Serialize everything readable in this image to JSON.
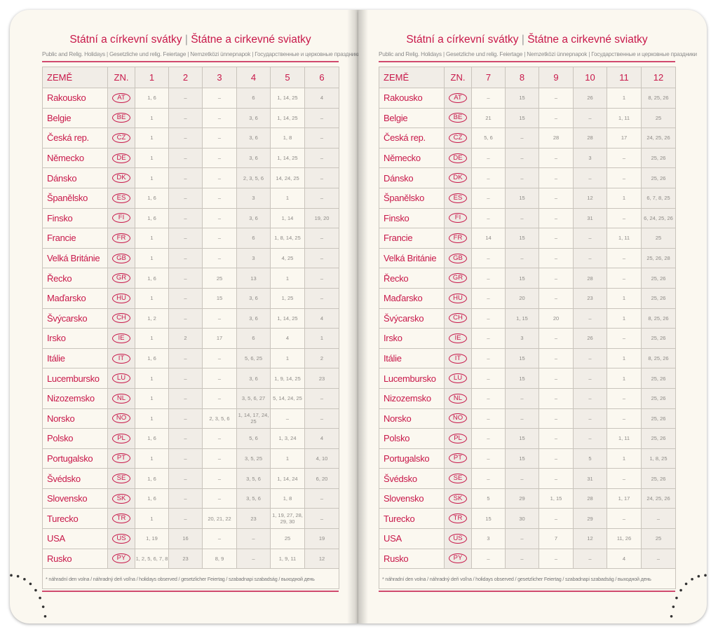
{
  "title_cz": "Státní a církevní svátky",
  "title_sep": "|",
  "title_sk": "Štátne a cirkevné sviatky",
  "subtitle": "Public and Relig. Holidays | Gesetzliche und relig. Feiertage | Nemzetközi ünnepnapok | Государственные и церковные праздники",
  "header_country": "ZEMĚ",
  "header_code": "ZN.",
  "footnote": "* náhradní den volna / náhradný deň voľna / holidays observed / gesetzlicher Feiertag / szabadnapi szabadság / выходной день",
  "accent_color": "#c8184a",
  "countries": [
    {
      "name": "Rakousko",
      "code": "AT"
    },
    {
      "name": "Belgie",
      "code": "BE"
    },
    {
      "name": "Česká rep.",
      "code": "CZ"
    },
    {
      "name": "Německo",
      "code": "DE"
    },
    {
      "name": "Dánsko",
      "code": "DK"
    },
    {
      "name": "Španělsko",
      "code": "ES"
    },
    {
      "name": "Finsko",
      "code": "FI"
    },
    {
      "name": "Francie",
      "code": "FR"
    },
    {
      "name": "Velká Británie",
      "code": "GB"
    },
    {
      "name": "Řecko",
      "code": "GR"
    },
    {
      "name": "Maďarsko",
      "code": "HU"
    },
    {
      "name": "Švýcarsko",
      "code": "CH"
    },
    {
      "name": "Irsko",
      "code": "IE"
    },
    {
      "name": "Itálie",
      "code": "IT"
    },
    {
      "name": "Lucembursko",
      "code": "LU"
    },
    {
      "name": "Nizozemsko",
      "code": "NL"
    },
    {
      "name": "Norsko",
      "code": "NO"
    },
    {
      "name": "Polsko",
      "code": "PL"
    },
    {
      "name": "Portugalsko",
      "code": "PT"
    },
    {
      "name": "Švédsko",
      "code": "SE"
    },
    {
      "name": "Slovensko",
      "code": "SK"
    },
    {
      "name": "Turecko",
      "code": "TR"
    },
    {
      "name": "USA",
      "code": "US"
    },
    {
      "name": "Rusko",
      "code": "PY"
    }
  ],
  "pages": [
    {
      "months": [
        "1",
        "2",
        "3",
        "4",
        "5",
        "6"
      ],
      "values": [
        [
          "1, 6",
          "–",
          "–",
          "6",
          "1, 14, 25",
          "4"
        ],
        [
          "1",
          "–",
          "–",
          "3, 6",
          "1, 14, 25",
          "–"
        ],
        [
          "1",
          "–",
          "–",
          "3, 6",
          "1, 8",
          "–"
        ],
        [
          "1",
          "–",
          "–",
          "3, 6",
          "1, 14, 25",
          "–"
        ],
        [
          "1",
          "–",
          "–",
          "2, 3, 5, 6",
          "14, 24, 25",
          "–"
        ],
        [
          "1, 6",
          "–",
          "–",
          "3",
          "1",
          "–"
        ],
        [
          "1, 6",
          "–",
          "–",
          "3, 6",
          "1, 14",
          "19, 20"
        ],
        [
          "1",
          "–",
          "–",
          "6",
          "1, 8, 14, 25",
          "–"
        ],
        [
          "1",
          "–",
          "–",
          "3",
          "4, 25",
          "–"
        ],
        [
          "1, 6",
          "–",
          "25",
          "13",
          "1",
          "–"
        ],
        [
          "1",
          "–",
          "15",
          "3, 6",
          "1, 25",
          "–"
        ],
        [
          "1, 2",
          "–",
          "–",
          "3, 6",
          "1, 14, 25",
          "4"
        ],
        [
          "1",
          "2",
          "17",
          "6",
          "4",
          "1"
        ],
        [
          "1, 6",
          "–",
          "–",
          "5, 6, 25",
          "1",
          "2"
        ],
        [
          "1",
          "–",
          "–",
          "3, 6",
          "1, 9, 14, 25",
          "23"
        ],
        [
          "1",
          "–",
          "–",
          "3, 5, 6, 27",
          "5, 14, 24, 25",
          "–"
        ],
        [
          "1",
          "–",
          "2, 3, 5, 6",
          "1, 14, 17, 24, 25",
          "–",
          "–"
        ],
        [
          "1, 6",
          "–",
          "–",
          "5, 6",
          "1, 3, 24",
          "4"
        ],
        [
          "1",
          "–",
          "–",
          "3, 5, 25",
          "1",
          "4, 10"
        ],
        [
          "1, 6",
          "–",
          "–",
          "3, 5, 6",
          "1, 14, 24",
          "6, 20"
        ],
        [
          "1, 6",
          "–",
          "–",
          "3, 5, 6",
          "1, 8",
          "–"
        ],
        [
          "1",
          "–",
          "20, 21, 22",
          "23",
          "1, 19, 27, 28, 29, 30",
          "–"
        ],
        [
          "1, 19",
          "16",
          "–",
          "–",
          "25",
          "19"
        ],
        [
          "1, 2, 5, 6, 7, 8",
          "23",
          "8, 9",
          "–",
          "1, 9, 11",
          "12"
        ]
      ]
    },
    {
      "months": [
        "7",
        "8",
        "9",
        "10",
        "11",
        "12"
      ],
      "values": [
        [
          "–",
          "15",
          "–",
          "26",
          "1",
          "8, 25, 26"
        ],
        [
          "21",
          "15",
          "–",
          "–",
          "1, 11",
          "25"
        ],
        [
          "5, 6",
          "–",
          "28",
          "28",
          "17",
          "24, 25, 26"
        ],
        [
          "–",
          "–",
          "–",
          "3",
          "–",
          "25, 26"
        ],
        [
          "–",
          "–",
          "–",
          "–",
          "–",
          "25, 26"
        ],
        [
          "–",
          "15",
          "–",
          "12",
          "1",
          "6, 7, 8, 25"
        ],
        [
          "–",
          "–",
          "–",
          "31",
          "–",
          "6, 24, 25, 26"
        ],
        [
          "14",
          "15",
          "–",
          "–",
          "1, 11",
          "25"
        ],
        [
          "–",
          "–",
          "–",
          "–",
          "–",
          "25, 26, 28"
        ],
        [
          "–",
          "15",
          "–",
          "28",
          "–",
          "25, 26"
        ],
        [
          "–",
          "20",
          "–",
          "23",
          "1",
          "25, 26"
        ],
        [
          "–",
          "1, 15",
          "20",
          "–",
          "1",
          "8, 25, 26"
        ],
        [
          "–",
          "3",
          "–",
          "26",
          "–",
          "25, 26"
        ],
        [
          "–",
          "15",
          "–",
          "–",
          "1",
          "8, 25, 26"
        ],
        [
          "–",
          "15",
          "–",
          "–",
          "1",
          "25, 26"
        ],
        [
          "–",
          "–",
          "–",
          "–",
          "–",
          "25, 26"
        ],
        [
          "–",
          "–",
          "–",
          "–",
          "–",
          "25, 26"
        ],
        [
          "–",
          "15",
          "–",
          "–",
          "1, 11",
          "25, 26"
        ],
        [
          "–",
          "15",
          "–",
          "5",
          "1",
          "1, 8, 25"
        ],
        [
          "–",
          "–",
          "–",
          "31",
          "–",
          "25, 26"
        ],
        [
          "5",
          "29",
          "1, 15",
          "28",
          "1, 17",
          "24, 25, 26"
        ],
        [
          "15",
          "30",
          "–",
          "29",
          "–",
          "–"
        ],
        [
          "3",
          "–",
          "7",
          "12",
          "11, 26",
          "25"
        ],
        [
          "–",
          "–",
          "–",
          "–",
          "4",
          "–"
        ]
      ]
    }
  ]
}
